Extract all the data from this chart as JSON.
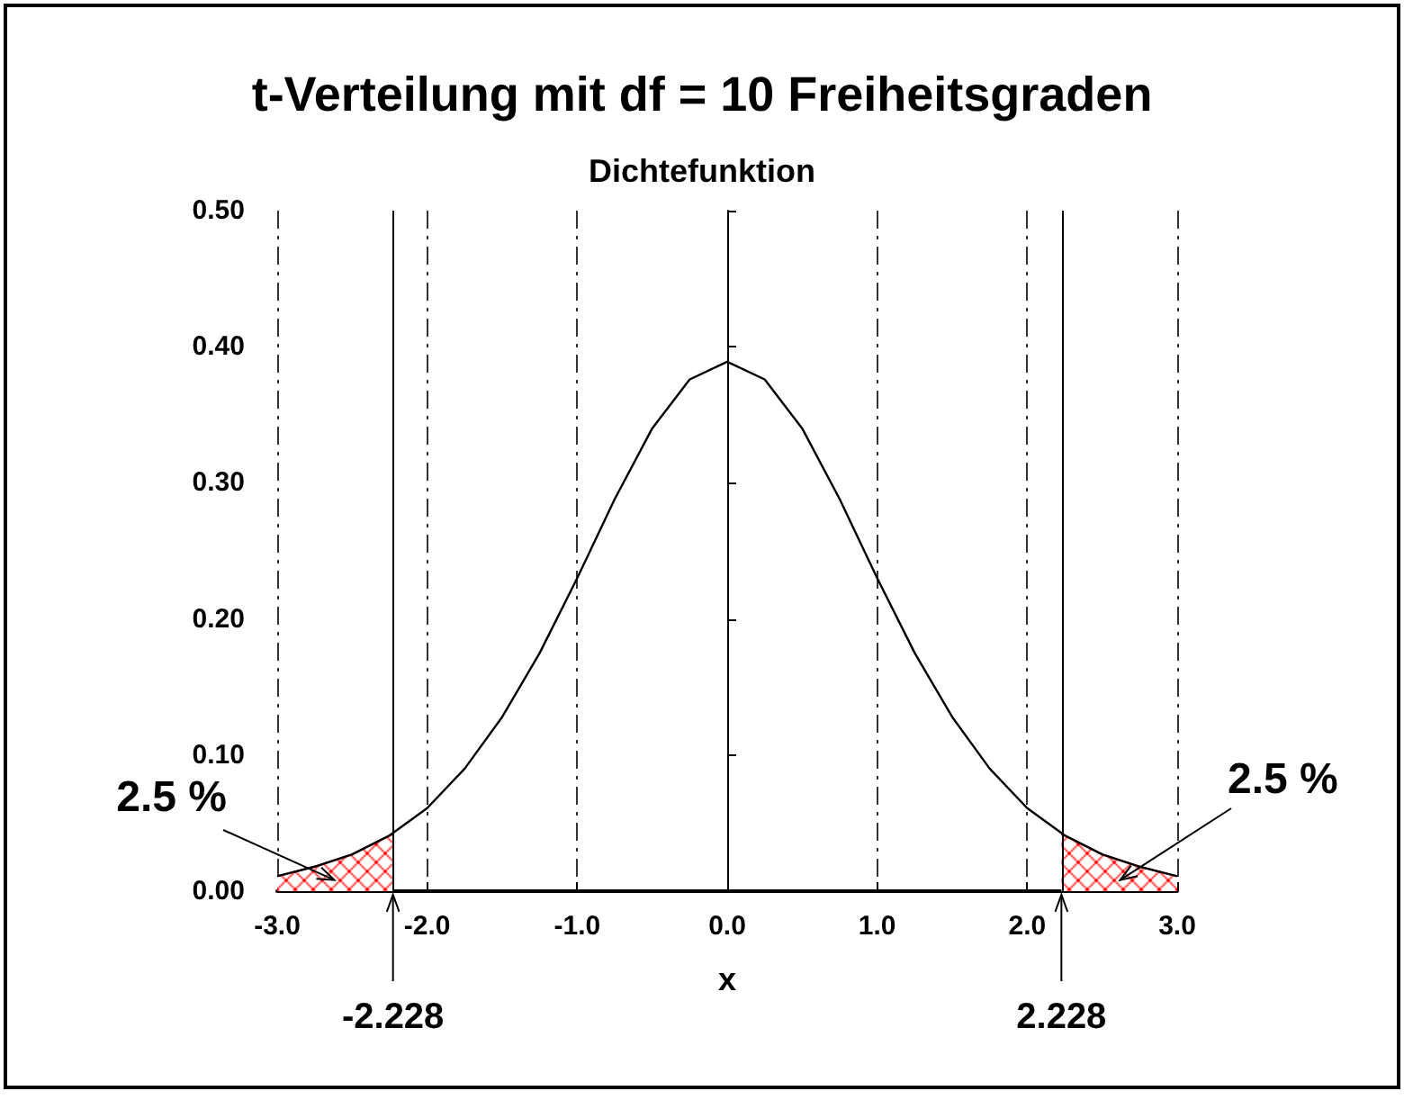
{
  "chart_data": {
    "type": "line",
    "title": "t-Verteilung mit df = 10 Freiheitsgraden",
    "subtitle": "Dichtefunktion",
    "xlabel": "x",
    "xlim": [
      -3,
      3
    ],
    "ylim": [
      0,
      0.5
    ],
    "xticks": [
      {
        "value": -3,
        "label": "-3.0"
      },
      {
        "value": -2,
        "label": "-2.0"
      },
      {
        "value": -1,
        "label": "-1.0"
      },
      {
        "value": 0,
        "label": "0.0"
      },
      {
        "value": 1,
        "label": "1.0"
      },
      {
        "value": 2,
        "label": "2.0"
      },
      {
        "value": 3,
        "label": "3.0"
      }
    ],
    "yticks": [
      {
        "value": 0,
        "label": "0.00"
      },
      {
        "value": 0.1,
        "label": "0.10"
      },
      {
        "value": 0.2,
        "label": "0.20"
      },
      {
        "value": 0.3,
        "label": "0.30"
      },
      {
        "value": 0.4,
        "label": "0.40"
      },
      {
        "value": 0.5,
        "label": "0.50"
      }
    ],
    "grid": "x",
    "marker": "none",
    "series": [
      {
        "type": "line",
        "color": "#000000",
        "x": [
          -3,
          -2.75,
          -2.5,
          -2.25,
          -2,
          -1.75,
          -1.5,
          -1.25,
          -1,
          -0.75,
          -0.5,
          -0.25,
          0,
          0.25,
          0.5,
          0.75,
          1,
          1.25,
          1.5,
          1.75,
          2,
          2.25,
          2.5,
          2.75,
          3
        ],
        "values": [
          0.011,
          0.018,
          0.027,
          0.041,
          0.061,
          0.09,
          0.128,
          0.175,
          0.23,
          0.288,
          0.34,
          0.376,
          0.389,
          0.376,
          0.34,
          0.288,
          0.23,
          0.175,
          0.128,
          0.09,
          0.061,
          0.041,
          0.027,
          0.018,
          0.011
        ]
      },
      {
        "type": "area",
        "color": "#ff0000",
        "x": [
          -3,
          -2.75,
          -2.5,
          -2.228
        ],
        "values": [
          0.011,
          0.018,
          0.027,
          0.042
        ]
      },
      {
        "type": "area",
        "color": "#ff0000",
        "x": [
          2.228,
          2.5,
          2.75,
          3
        ],
        "values": [
          0.042,
          0.027,
          0.018,
          0.011
        ]
      }
    ],
    "ref_lines": [
      {
        "axis": "x",
        "value": -2.228
      },
      {
        "axis": "x",
        "value": 0
      },
      {
        "axis": "x",
        "value": 2.228
      }
    ],
    "annotations": [
      "2.5 %",
      {
        "text": "-2.228",
        "x": -2.228,
        "y": 0
      },
      "2.5 %",
      {
        "text": "2.228",
        "x": 2.228,
        "y": 0
      }
    ]
  }
}
